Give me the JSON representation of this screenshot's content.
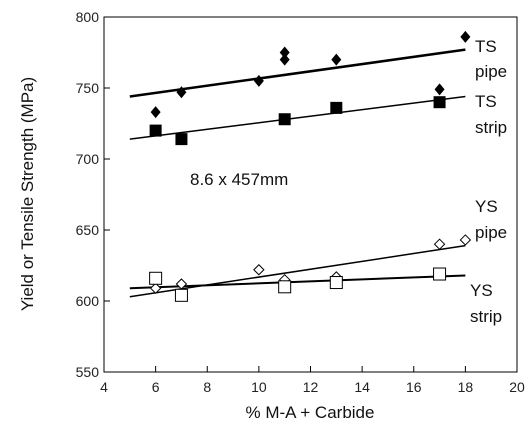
{
  "chart_data": {
    "type": "scatter",
    "xlabel": "% M-A + Carbide",
    "ylabel": "Yield or Tensile Strength (MPa)",
    "xlim": [
      4,
      20
    ],
    "ylim": [
      550,
      800
    ],
    "x_ticks": [
      "4",
      "6",
      "8",
      "10",
      "12",
      "14",
      "16",
      "18",
      "20"
    ],
    "y_ticks": [
      "550",
      "600",
      "650",
      "700",
      "750",
      "800"
    ],
    "grid": false,
    "annotation": "8.6 x 457mm",
    "series": [
      {
        "name": "TS pipe",
        "marker": "filled-diamond",
        "points": [
          [
            6,
            733
          ],
          [
            7,
            747
          ],
          [
            10,
            755
          ],
          [
            11,
            770
          ],
          [
            11,
            775
          ],
          [
            13,
            770
          ],
          [
            17,
            749
          ],
          [
            18,
            786
          ]
        ],
        "trend": [
          [
            5,
            744
          ],
          [
            18,
            777
          ]
        ],
        "trend_width": 2.5
      },
      {
        "name": "TS strip",
        "marker": "filled-square",
        "points": [
          [
            6,
            720
          ],
          [
            7,
            714
          ],
          [
            11,
            728
          ],
          [
            13,
            736
          ],
          [
            17,
            740
          ]
        ],
        "trend": [
          [
            5,
            714
          ],
          [
            18,
            744
          ]
        ],
        "trend_width": 1.5
      },
      {
        "name": "YS pipe",
        "marker": "open-diamond",
        "points": [
          [
            6,
            609
          ],
          [
            7,
            612
          ],
          [
            10,
            622
          ],
          [
            11,
            615
          ],
          [
            13,
            617
          ],
          [
            17,
            640
          ],
          [
            18,
            643
          ]
        ],
        "trend": [
          [
            5,
            603
          ],
          [
            18,
            639
          ]
        ],
        "trend_width": 1.5
      },
      {
        "name": "YS strip",
        "marker": "open-square",
        "points": [
          [
            6,
            616
          ],
          [
            7,
            604
          ],
          [
            11,
            610
          ],
          [
            13,
            613
          ],
          [
            17,
            619
          ]
        ],
        "trend": [
          [
            5,
            609
          ],
          [
            18,
            618
          ]
        ],
        "trend_width": 2
      }
    ],
    "series_labels": [
      {
        "line1": "TS",
        "line2": "pipe"
      },
      {
        "line1": "TS",
        "line2": "strip"
      },
      {
        "line1": "YS",
        "line2": "pipe"
      },
      {
        "line1": "YS",
        "line2": "strip"
      }
    ]
  }
}
